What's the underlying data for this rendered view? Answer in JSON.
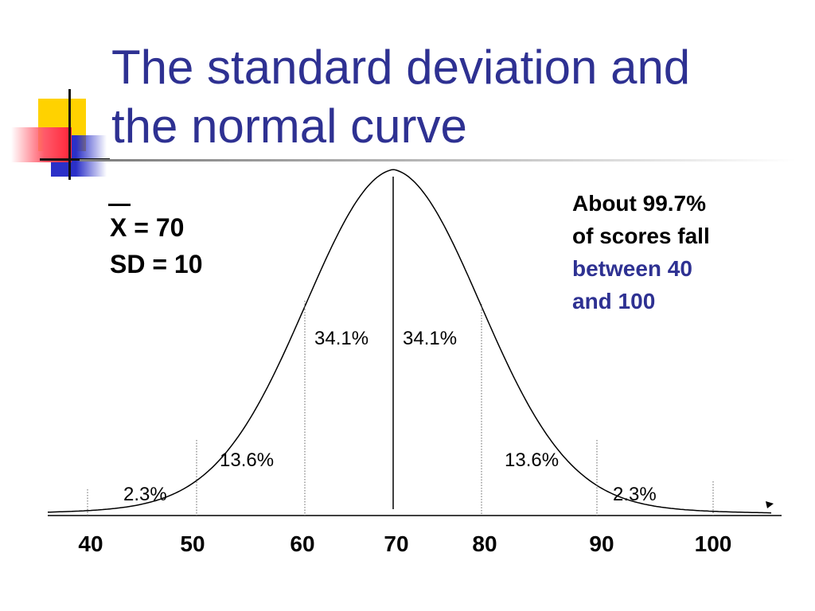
{
  "slide": {
    "title_lines": [
      "The standard deviation and",
      "the normal curve"
    ],
    "mean_label": "X = 70",
    "sd_label": "SD = 10",
    "note_lines_black": [
      "About 99.7%",
      "of scores fall"
    ],
    "note_lines_blue": [
      "between 40",
      "and 100"
    ],
    "colors": {
      "title": "#2e3192",
      "accent_blue": "#2e3192",
      "text": "#000000"
    }
  },
  "diagram": {
    "type": "normal-distribution",
    "mean": 70,
    "sd": 10,
    "x_ticks": [
      "40",
      "50",
      "60",
      "70",
      "80",
      "90",
      "100"
    ],
    "region_labels": {
      "left_outer": "2.3%",
      "left_mid": "13.6%",
      "left_inner": "34.1%",
      "right_inner": "34.1%",
      "right_mid": "13.6%",
      "right_outer": "2.3%"
    }
  }
}
